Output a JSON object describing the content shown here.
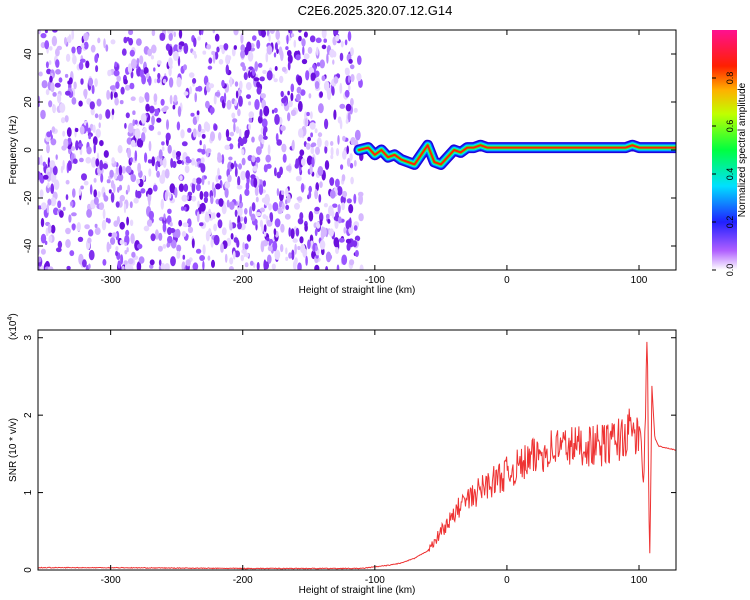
{
  "title": "C2E6.2025.320.07.12.G14",
  "chart_data": [
    {
      "type": "heatmap",
      "xlabel": "Height of straight line (km)",
      "ylabel": "Frequency (Hz)",
      "xlim": [
        -355,
        128
      ],
      "ylim": [
        -50,
        50
      ],
      "xticks": [
        -300,
        -200,
        -100,
        0,
        100
      ],
      "yticks": [
        -40,
        -20,
        0,
        20,
        40
      ],
      "noise_region_x": [
        -355,
        -110
      ],
      "ridge": {
        "x": [
          -112,
          -105,
          -100,
          -95,
          -90,
          -85,
          -80,
          -75,
          -70,
          -65,
          -60,
          -55,
          -50,
          -45,
          -40,
          -35,
          -30,
          -25,
          -20,
          -15,
          -10,
          0,
          10,
          20,
          30,
          40,
          50,
          60,
          70,
          80,
          90,
          95,
          100,
          105,
          110,
          120,
          128
        ],
        "freq_hz": [
          0,
          1,
          -2,
          0,
          -3,
          -2,
          -4,
          -5,
          -6,
          -2,
          2,
          -5,
          -6,
          -3,
          0,
          -1,
          1,
          1,
          2,
          1,
          1,
          1,
          1,
          1,
          1,
          1,
          1,
          1,
          1,
          1,
          1,
          2,
          1,
          1,
          1,
          1,
          1
        ]
      },
      "colorbar": {
        "label": "Normalized spectral amplitude",
        "range": [
          0,
          1
        ],
        "ticks": [
          0.0,
          0.2,
          0.4,
          0.6,
          0.8
        ],
        "colors": [
          "#ffffff",
          "#8000ff",
          "#0000ff",
          "#00ffff",
          "#00ff00",
          "#ffff00",
          "#ff0000",
          "#ff0080"
        ]
      }
    },
    {
      "type": "line",
      "xlabel": "Height of straight line (km)",
      "ylabel": "SNR (10 * v/v)",
      "scale_label": "(x10",
      "scale_exp": "4",
      "scale_close": ")",
      "xlim": [
        -355,
        128
      ],
      "ylim": [
        0,
        3.1
      ],
      "xticks": [
        -300,
        -200,
        -100,
        0,
        100
      ],
      "yticks": [
        0,
        1,
        2,
        3
      ],
      "line_color": "#ee3333",
      "x": [
        -355,
        -300,
        -200,
        -110,
        -100,
        -90,
        -80,
        -70,
        -60,
        -55,
        -50,
        -45,
        -40,
        -35,
        -30,
        -25,
        -20,
        -15,
        -10,
        -5,
        0,
        10,
        20,
        30,
        40,
        50,
        60,
        70,
        80,
        90,
        95,
        100,
        104,
        106,
        108,
        110,
        112,
        115,
        120,
        128
      ],
      "y": [
        0.03,
        0.03,
        0.02,
        0.02,
        0.04,
        0.06,
        0.09,
        0.15,
        0.25,
        0.35,
        0.5,
        0.6,
        0.7,
        0.85,
        0.9,
        0.95,
        1.05,
        1.1,
        1.15,
        1.2,
        1.25,
        1.35,
        1.45,
        1.55,
        1.6,
        1.6,
        1.62,
        1.6,
        1.65,
        1.75,
        1.8,
        1.7,
        1.2,
        3.1,
        0.1,
        2.3,
        1.7,
        1.6,
        1.58,
        1.55
      ]
    }
  ]
}
